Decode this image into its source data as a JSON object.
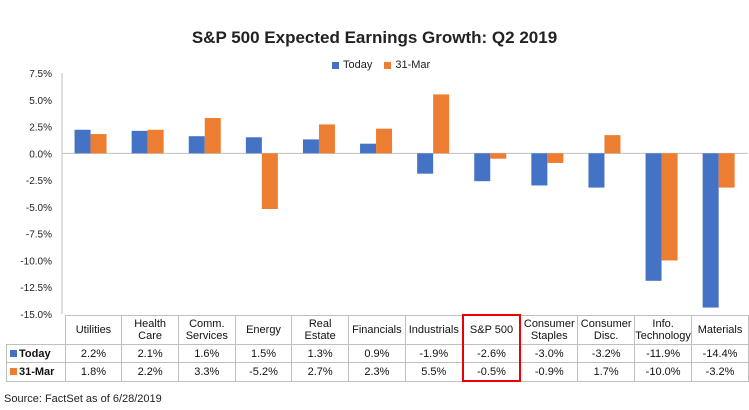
{
  "chart_data": {
    "type": "bar",
    "title": "S&P 500 Expected Earnings Growth: Q2 2019",
    "categories": [
      "Utilities",
      "Health Care",
      "Comm. Services",
      "Energy",
      "Real Estate",
      "Financials",
      "Industrials",
      "S&P 500",
      "Consumer Staples",
      "Consumer Disc.",
      "Info. Technology",
      "Materials"
    ],
    "series": [
      {
        "name": "Today",
        "color": "#4472C4",
        "values": [
          2.2,
          2.1,
          1.6,
          1.5,
          1.3,
          0.9,
          -1.9,
          -2.6,
          -3.0,
          -3.2,
          -11.9,
          -14.4
        ],
        "labels": [
          "2.2%",
          "2.1%",
          "1.6%",
          "1.5%",
          "1.3%",
          "0.9%",
          "-1.9%",
          "-2.6%",
          "-3.0%",
          "-3.2%",
          "-11.9%",
          "-14.4%"
        ]
      },
      {
        "name": "31-Mar",
        "color": "#ED7D31",
        "values": [
          1.8,
          2.2,
          3.3,
          -5.2,
          2.7,
          2.3,
          5.5,
          -0.5,
          -0.9,
          1.7,
          -10.0,
          -3.2
        ],
        "labels": [
          "1.8%",
          "2.2%",
          "3.3%",
          "-5.2%",
          "2.7%",
          "2.3%",
          "5.5%",
          "-0.5%",
          "-0.9%",
          "1.7%",
          "-10.0%",
          "-3.2%"
        ]
      }
    ],
    "ylim": [
      -15,
      7.5
    ],
    "yticks": [
      "7.5%",
      "5.0%",
      "2.5%",
      "0.0%",
      "-2.5%",
      "-5.0%",
      "-7.5%",
      "-10.0%",
      "-12.5%",
      "-15.0%"
    ],
    "ytick_values": [
      7.5,
      5,
      2.5,
      0,
      -2.5,
      -5,
      -7.5,
      -10,
      -12.5,
      -15
    ],
    "legend": "top-center",
    "highlighted_category": "S&P 500"
  },
  "source": "Source: FactSet as of 6/28/2019"
}
